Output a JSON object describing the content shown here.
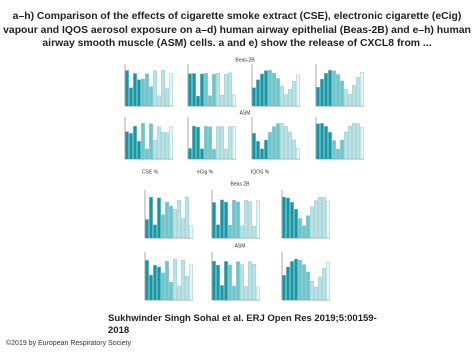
{
  "header": {
    "title_lines": [
      "a–h) Comparison of the effects of cigarette smoke extract (CSE), electronic cigarette (eCig)",
      "vapour and IQOS aerosol exposure on a–d) human airway epithelial (Beas-2B) and e–h) human",
      "airway smooth muscle (ASM) cells. a and e) show the release of CXCL8 from ..."
    ]
  },
  "figure": {
    "section_labels": [
      "Beas-2B",
      "ASM",
      "Beas 2B",
      "ASM"
    ],
    "exposure_labels": [
      "CSE %",
      "eCig %",
      "IQOS %"
    ]
  },
  "citation": {
    "lines": [
      "Sukhwinder Singh Sohal et al. ERJ Open Res 2019;5:00159-",
      "2018"
    ]
  },
  "footer": {
    "copyright": "©2019 by European Respiratory Society"
  }
}
